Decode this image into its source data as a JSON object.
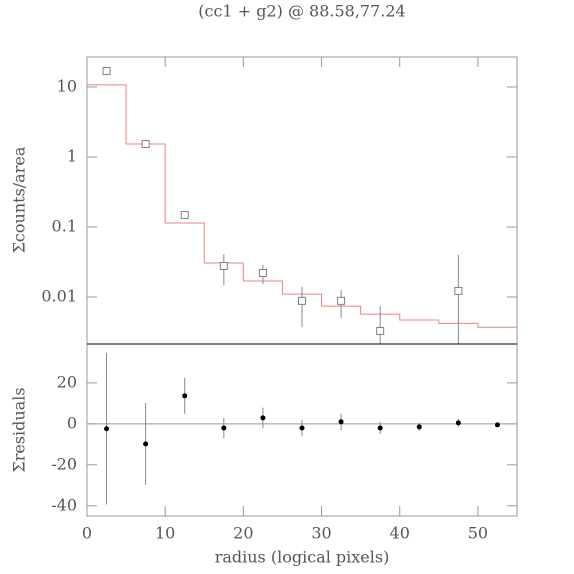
{
  "chart_data": [
    {
      "type": "scatter",
      "title": "(cc1 + g2) @ 88.58,77.24",
      "ylabel": "Σcounts/area",
      "x": [
        2.5,
        7.5,
        12.5,
        17.5,
        22.5,
        27.5,
        32.5,
        37.5,
        42.5,
        47.5,
        52.5
      ],
      "values": [
        16.9,
        1.53,
        0.148,
        0.0277,
        0.022,
        0.0088,
        0.0088,
        0.00327,
        null,
        0.0122,
        null
      ],
      "errors": [
        1.2,
        0.12,
        0.012,
        0.013,
        0.0067,
        0.0051,
        0.0038,
        0.0041,
        null,
        0.0276,
        null
      ],
      "color": "#808080",
      "model": {
        "values": [
          10.7,
          1.53,
          0.114,
          0.0306,
          0.0169,
          0.011,
          0.0074,
          0.0057,
          0.0047,
          0.0042,
          0.0037
        ],
        "color": "#f08080"
      },
      "xlim": [
        0,
        55
      ],
      "ylim": [
        0.00213,
        26.8
      ],
      "log": true,
      "yticks": [
        0.01,
        0.1,
        1,
        10
      ]
    },
    {
      "type": "scatter",
      "ylabel": "Σresiduals",
      "xlabel": "radius (logical pixels)",
      "x": [
        2.5,
        7.5,
        12.5,
        17.5,
        22.5,
        27.5,
        32.5,
        37.5,
        42.5,
        47.5,
        52.5
      ],
      "values": [
        -2.4,
        -9.8,
        13.7,
        -2,
        2.9,
        -2,
        1,
        -2,
        -1.5,
        0.5,
        -0.5
      ],
      "errors": [
        37,
        20,
        8.8,
        5,
        5,
        4,
        4,
        3,
        2,
        2,
        1
      ],
      "color": "#000000",
      "xlim": [
        0,
        55
      ],
      "xticks": [
        0,
        10,
        20,
        30,
        40,
        50
      ],
      "ylim": [
        -45,
        39
      ],
      "yticks": [
        -40,
        -20,
        0,
        20
      ]
    }
  ]
}
